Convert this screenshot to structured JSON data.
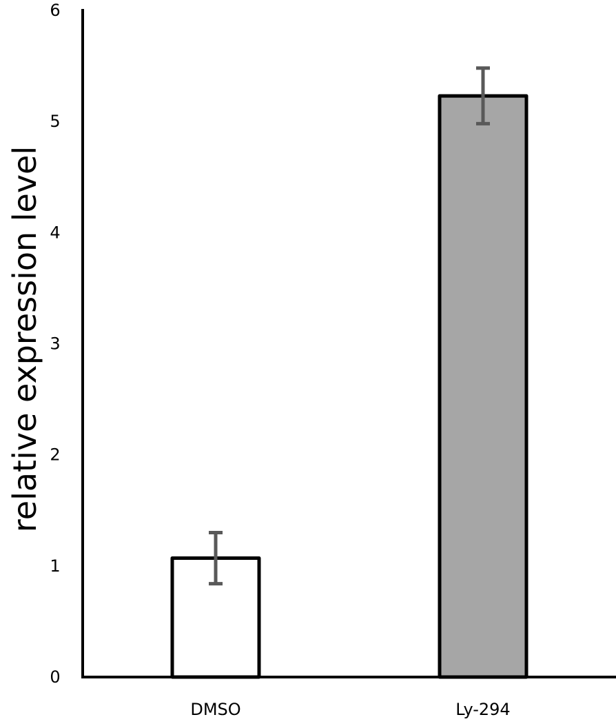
{
  "chart_data": {
    "type": "bar",
    "title": "",
    "xlabel": "",
    "ylabel": "relative expression level",
    "categories": [
      "DMSO",
      "Ly-294"
    ],
    "values": [
      1.07,
      5.23
    ],
    "errors": [
      0.23,
      0.25
    ],
    "ylim": [
      0,
      6
    ],
    "yticks": [
      0,
      1,
      2,
      3,
      4,
      5,
      6
    ],
    "grid": false,
    "bar_colors": [
      "#ffffff",
      "#a6a6a6"
    ],
    "bar_edge_color": "#000000",
    "error_bar_color": "#595959"
  }
}
